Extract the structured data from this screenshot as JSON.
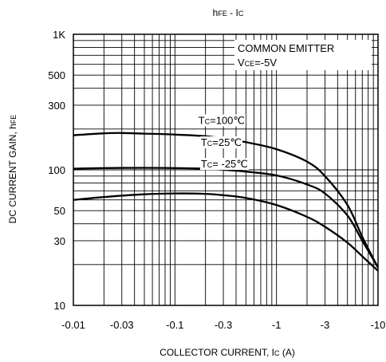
{
  "chart_data": {
    "type": "line",
    "title": {
      "main": "h",
      "main_sub": "FE",
      "sep": " - I",
      "sep_sub": "C"
    },
    "ylabel": {
      "main": "DC CURRENT GAIN, h",
      "sub": "FE"
    },
    "xlabel": {
      "pre": "COLLECTOR CURRENT, I",
      "sub": "C",
      "post": " (A)"
    },
    "x_scale": "log",
    "y_scale": "log",
    "xlim": [
      0.01,
      10
    ],
    "ylim": [
      10,
      1000
    ],
    "x_ticks": [
      {
        "value": 0.01,
        "label": "-0.01"
      },
      {
        "value": 0.03,
        "label": "-0.03"
      },
      {
        "value": 0.1,
        "label": "-0.1"
      },
      {
        "value": 0.3,
        "label": "-0.3"
      },
      {
        "value": 1,
        "label": "-1"
      },
      {
        "value": 3,
        "label": "-3"
      },
      {
        "value": 10,
        "label": "-10"
      }
    ],
    "y_ticks": [
      {
        "value": 10,
        "label": "10"
      },
      {
        "value": 30,
        "label": "30"
      },
      {
        "value": 50,
        "label": "50"
      },
      {
        "value": 100,
        "label": "100"
      },
      {
        "value": 300,
        "label": "300"
      },
      {
        "value": 500,
        "label": "500"
      },
      {
        "value": 1000,
        "label": "1K"
      }
    ],
    "grid": true,
    "conditions": {
      "line1": "COMMON EMITTER",
      "line2_pre": "V",
      "line2_sub": "CE",
      "line2_post": "=-5V"
    },
    "series": [
      {
        "label_pre": "T",
        "label_sub": "C",
        "label_post": "=100℃",
        "label_at": {
          "x": 0.17,
          "y": 218
        },
        "points": [
          [
            0.01,
            180
          ],
          [
            0.02,
            186
          ],
          [
            0.03,
            187
          ],
          [
            0.05,
            185
          ],
          [
            0.1,
            182
          ],
          [
            0.2,
            177
          ],
          [
            0.3,
            170
          ],
          [
            0.5,
            160
          ],
          [
            1,
            142
          ],
          [
            2,
            115
          ],
          [
            3,
            90
          ],
          [
            5,
            55
          ],
          [
            7,
            32
          ],
          [
            10,
            19
          ]
        ]
      },
      {
        "label_pre": "T",
        "label_sub": "C",
        "label_post": "=25℃",
        "label_at": {
          "x": 0.18,
          "y": 150
        },
        "points": [
          [
            0.01,
            102
          ],
          [
            0.02,
            103
          ],
          [
            0.05,
            103.5
          ],
          [
            0.1,
            103
          ],
          [
            0.2,
            102
          ],
          [
            0.3,
            100
          ],
          [
            0.5,
            97
          ],
          [
            1,
            91
          ],
          [
            2,
            78
          ],
          [
            3,
            67
          ],
          [
            5,
            46
          ],
          [
            7,
            30
          ],
          [
            10,
            19
          ]
        ]
      },
      {
        "label_pre": "T",
        "label_sub": "C",
        "label_post": "= -25℃",
        "label_at": {
          "x": 0.18,
          "y": 104
        },
        "points": [
          [
            0.01,
            60
          ],
          [
            0.02,
            63
          ],
          [
            0.05,
            66
          ],
          [
            0.1,
            67
          ],
          [
            0.2,
            66.5
          ],
          [
            0.3,
            65
          ],
          [
            0.5,
            62
          ],
          [
            1,
            55
          ],
          [
            2,
            45
          ],
          [
            3,
            38
          ],
          [
            5,
            29
          ],
          [
            7,
            23
          ],
          [
            10,
            18
          ]
        ]
      }
    ]
  }
}
